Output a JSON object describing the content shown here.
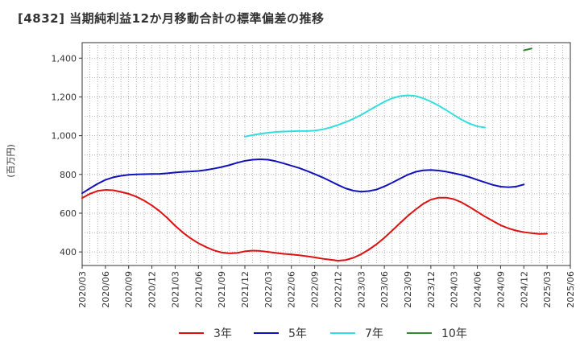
{
  "chart_data": {
    "type": "line",
    "title": "[4832]  当期純利益12か月移動合計の標準偏差の推移",
    "ylabel": "(百万円)",
    "xlabel": "",
    "ylim": [
      330,
      1480
    ],
    "yticks": [
      400,
      600,
      800,
      1000,
      1200,
      1400
    ],
    "ytick_labels": [
      "400",
      "600",
      "800",
      "1,000",
      "1,200",
      "1,400"
    ],
    "xlim": [
      "2020/03",
      "2025/06"
    ],
    "xtick_labels": [
      "2020/03",
      "2020/06",
      "2020/09",
      "2020/12",
      "2021/03",
      "2021/06",
      "2021/09",
      "2021/12",
      "2022/03",
      "2022/06",
      "2022/09",
      "2022/12",
      "2023/03",
      "2023/06",
      "2023/09",
      "2023/12",
      "2024/03",
      "2024/06",
      "2024/09",
      "2024/12",
      "2025/03",
      "2025/06"
    ],
    "grid": true,
    "legend_position": "bottom",
    "series": [
      {
        "name": "3年",
        "color": "#dd1111",
        "start": "2020/03",
        "values": [
          678,
          700,
          715,
          720,
          718,
          710,
          700,
          685,
          665,
          640,
          610,
          575,
          535,
          500,
          470,
          445,
          425,
          408,
          397,
          393,
          395,
          403,
          407,
          405,
          400,
          395,
          390,
          387,
          383,
          378,
          372,
          365,
          360,
          355,
          358,
          370,
          388,
          412,
          440,
          473,
          510,
          548,
          585,
          618,
          648,
          670,
          680,
          680,
          672,
          655,
          632,
          607,
          582,
          560,
          538,
          522,
          510,
          502,
          497,
          493,
          494
        ]
      },
      {
        "name": "5年",
        "color": "#1111bb",
        "start": "2020/03",
        "values": [
          703,
          728,
          752,
          772,
          785,
          793,
          798,
          800,
          801,
          802,
          803,
          806,
          810,
          813,
          815,
          818,
          823,
          830,
          838,
          848,
          860,
          870,
          876,
          878,
          876,
          868,
          857,
          845,
          833,
          818,
          802,
          785,
          766,
          746,
          728,
          716,
          711,
          714,
          722,
          738,
          757,
          778,
          798,
          813,
          821,
          823,
          820,
          814,
          806,
          797,
          786,
          772,
          759,
          746,
          737,
          734,
          737,
          748
        ]
      },
      {
        "name": "7年",
        "color": "#33dddd",
        "start": "2021/12",
        "values": [
          995,
          1003,
          1010,
          1015,
          1019,
          1021,
          1023,
          1024,
          1024,
          1026,
          1032,
          1042,
          1055,
          1070,
          1087,
          1107,
          1130,
          1153,
          1175,
          1193,
          1204,
          1208,
          1205,
          1193,
          1176,
          1155,
          1131,
          1106,
          1082,
          1062,
          1048,
          1042
        ]
      },
      {
        "name": "10年",
        "color": "#338833",
        "start": "2024/12",
        "values": [
          1440,
          1450
        ]
      }
    ]
  }
}
